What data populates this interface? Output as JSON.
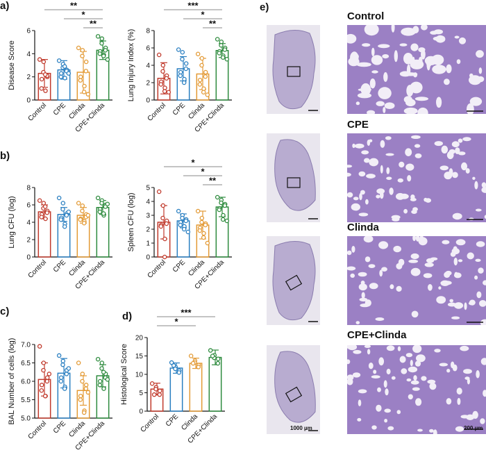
{
  "panel_labels": {
    "a": "a)",
    "b": "b)",
    "c": "c)",
    "d": "d)",
    "e": "e)"
  },
  "colors": {
    "Control": "#c0392b",
    "CPE": "#2a7fc1",
    "Clinda": "#e39a35",
    "CPE+Clinda": "#2e8b3e"
  },
  "chart_data": [
    {
      "id": "disease",
      "type": "bar",
      "ylabel": "Disease Score",
      "categories": [
        "Control",
        "CPE",
        "Clinda",
        "CPE+Clinda"
      ],
      "ylim": [
        0,
        6
      ],
      "yticks": [
        0,
        2,
        4,
        6
      ],
      "values": [
        2.3,
        2.6,
        2.4,
        4.3
      ],
      "errors": [
        1.2,
        0.8,
        1.8,
        0.8
      ],
      "points": [
        [
          3.5,
          3.3,
          2.4,
          2.0,
          2.1,
          1.8,
          1.0,
          0.8,
          2.2
        ],
        [
          3.4,
          3.1,
          2.8,
          2.6,
          2.5,
          2.3,
          2.0,
          1.9,
          2.9,
          2.3
        ],
        [
          4.5,
          4.3,
          3.8,
          3.3,
          2.5,
          2.0,
          1.7,
          1.2,
          0.7,
          0.5
        ],
        [
          5.5,
          5.3,
          4.9,
          4.5,
          4.3,
          4.2,
          4.0,
          3.9,
          3.8,
          3.5
        ]
      ],
      "significance": [
        {
          "from": 0,
          "to": 3,
          "label": "**"
        },
        {
          "from": 1,
          "to": 3,
          "label": "*"
        },
        {
          "from": 2,
          "to": 3,
          "label": "**"
        }
      ]
    },
    {
      "id": "injury",
      "type": "bar",
      "ylabel": "Lung Injury Index (%)",
      "categories": [
        "Control",
        "CPE",
        "Clinda",
        "CPE+Clinda"
      ],
      "ylim": [
        0,
        8
      ],
      "yticks": [
        0,
        2,
        4,
        6,
        8
      ],
      "values": [
        2.5,
        3.6,
        3.0,
        5.7
      ],
      "errors": [
        1.8,
        1.4,
        1.8,
        0.8
      ],
      "points": [
        [
          5.2,
          4.0,
          3.3,
          2.8,
          2.5,
          2.1,
          1.8,
          1.4,
          1.0,
          0.9
        ],
        [
          5.8,
          5.5,
          4.7,
          4.2,
          3.6,
          3.2,
          2.8,
          2.4,
          2.0
        ],
        [
          5.3,
          4.8,
          4.0,
          3.2,
          2.7,
          2.3,
          1.8,
          1.3,
          0.9,
          0.6
        ],
        [
          7.0,
          6.7,
          6.3,
          6.0,
          5.8,
          5.6,
          5.4,
          5.1,
          4.9,
          4.7
        ]
      ],
      "significance": [
        {
          "from": 0,
          "to": 3,
          "label": "***"
        },
        {
          "from": 1,
          "to": 3,
          "label": "*"
        },
        {
          "from": 2,
          "to": 3,
          "label": "**"
        }
      ]
    },
    {
      "id": "lungcfu",
      "type": "bar",
      "ylabel": "Lung CFU (log)",
      "categories": [
        "Control",
        "CPE",
        "Clinda",
        "CPE+Clinda"
      ],
      "ylim": [
        0,
        8
      ],
      "yticks": [
        0,
        2,
        4,
        6,
        8
      ],
      "values": [
        5.2,
        4.9,
        4.8,
        5.7
      ],
      "errors": [
        0.8,
        0.8,
        0.9,
        0.8
      ],
      "points": [
        [
          6.5,
          6.2,
          5.6,
          5.3,
          5.1,
          4.9,
          4.6,
          4.4,
          5.8
        ],
        [
          6.8,
          6.2,
          5.5,
          5.0,
          4.8,
          4.5,
          4.3,
          3.8,
          3.5,
          5.2
        ],
        [
          6.2,
          5.9,
          5.3,
          4.9,
          4.6,
          4.4,
          4.3,
          4.1,
          3.9,
          4.8
        ],
        [
          6.8,
          6.5,
          6.2,
          6.0,
          5.8,
          5.5,
          5.2,
          4.8,
          5.0,
          6.1
        ]
      ],
      "significance": []
    },
    {
      "id": "spleencfu",
      "type": "bar",
      "ylabel": "Spleen CFU (log)",
      "categories": [
        "Control",
        "CPE",
        "Clinda",
        "CPE+Clinda"
      ],
      "ylim": [
        0,
        5
      ],
      "yticks": [
        0,
        1,
        2,
        3,
        4,
        5
      ],
      "values": [
        2.5,
        2.6,
        2.3,
        3.6
      ],
      "errors": [
        1.2,
        0.5,
        1.0,
        0.7
      ],
      "points": [
        [
          4.7,
          3.7,
          2.8,
          2.6,
          2.4,
          2.3,
          2.2,
          1.3,
          0.0
        ],
        [
          3.3,
          3.0,
          2.8,
          2.7,
          2.6,
          2.5,
          2.3,
          2.2,
          2.0,
          1.8
        ],
        [
          3.3,
          2.8,
          2.5,
          2.4,
          2.3,
          2.1,
          1.9,
          1.7,
          1.4,
          1.0
        ],
        [
          4.3,
          4.1,
          3.9,
          3.8,
          3.7,
          3.5,
          3.4,
          3.0,
          2.7,
          2.6
        ]
      ],
      "significance": [
        {
          "from": 0,
          "to": 3,
          "label": "*"
        },
        {
          "from": 1,
          "to": 3,
          "label": "*"
        },
        {
          "from": 2,
          "to": 3,
          "label": "**"
        }
      ]
    },
    {
      "id": "bal",
      "type": "bar",
      "ylabel": "BAL Number of cells (log)",
      "categories": [
        "Control",
        "CPE",
        "Clinda",
        "CPE+Clinda"
      ],
      "ylim": [
        5,
        7
      ],
      "yticks": [
        5.0,
        5.5,
        6.0,
        6.5,
        7.0
      ],
      "values": [
        6.05,
        6.22,
        5.75,
        6.15
      ],
      "errors": [
        0.45,
        0.4,
        0.4,
        0.3
      ],
      "points": [
        [
          6.95,
          6.5,
          6.3,
          6.1,
          6.0,
          5.9,
          5.75,
          5.6,
          5.6,
          6.2
        ],
        [
          6.7,
          6.55,
          6.45,
          6.3,
          6.2,
          6.1,
          6.0,
          5.85,
          5.8,
          6.35
        ],
        [
          6.5,
          6.2,
          6.0,
          5.9,
          5.8,
          5.6,
          5.5,
          5.2,
          5.15,
          5.7
        ],
        [
          6.6,
          6.5,
          6.35,
          6.2,
          6.1,
          6.0,
          5.9,
          5.8,
          6.25,
          6.05
        ]
      ],
      "significance": []
    },
    {
      "id": "histo",
      "type": "bar",
      "ylabel": "Histological  Score",
      "categories": [
        "Control",
        "CPE",
        "Clinda",
        "CPE+Clinda"
      ],
      "ylim": [
        0,
        20
      ],
      "yticks": [
        0,
        5,
        10,
        15,
        20
      ],
      "values": [
        6.0,
        11.7,
        13.0,
        14.6
      ],
      "errors": [
        1.6,
        1.4,
        1.4,
        2.0
      ],
      "points": [
        [
          7.5,
          6.5,
          6.0,
          5.5,
          4.5,
          4.5
        ],
        [
          13.2,
          12.0,
          11.5,
          11.0,
          10.5,
          12.4
        ],
        [
          15.0,
          13.7,
          13.2,
          12.5,
          12.0,
          13.0
        ],
        [
          16.5,
          15.2,
          14.5,
          14.2,
          13.0,
          15.0
        ]
      ],
      "significance": [
        {
          "from": 0,
          "to": 2,
          "label": "*"
        },
        {
          "from": 0,
          "to": 3,
          "label": "***"
        }
      ]
    }
  ],
  "histology": {
    "rows": [
      "Control",
      "CPE",
      "Clinda",
      "CPE+Clinda"
    ],
    "scale_low": "1000 µm",
    "scale_high": "200 µm"
  }
}
